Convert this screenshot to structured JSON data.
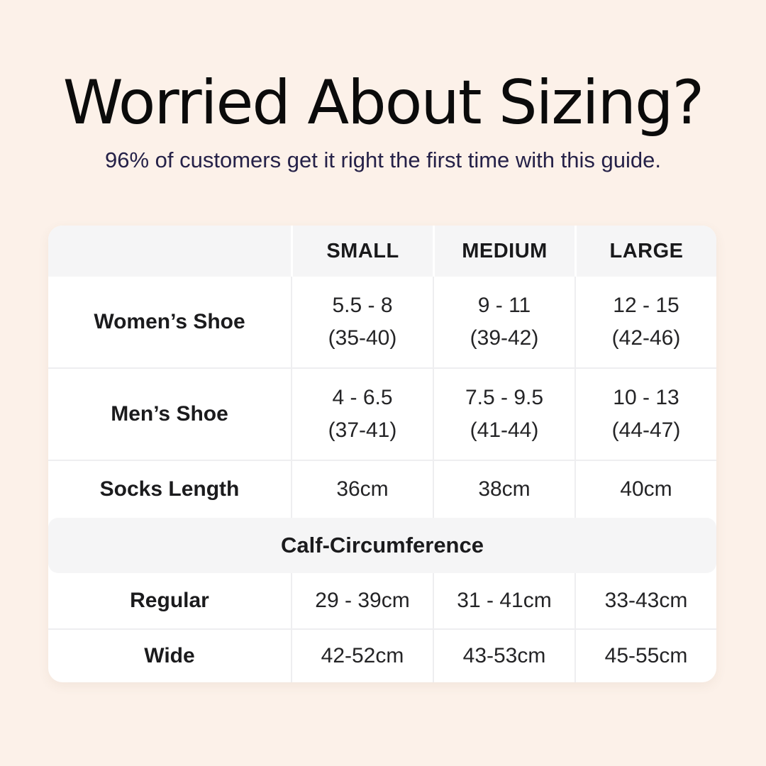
{
  "colors": {
    "page_background": "#fcf1e9",
    "table_background": "#ffffff",
    "header_band_gray": "#f5f5f6",
    "grid_line": "#eeeef0",
    "title_text": "#0b0b0b",
    "subtitle_text": "#252148",
    "table_text": "#242426"
  },
  "chart_data": {
    "type": "table",
    "title": "Worried About Sizing?",
    "subtitle": "96% of customers get it right the first time with this guide.",
    "column_headers": [
      "SMALL",
      "MEDIUM",
      "LARGE"
    ],
    "shoe_rows": [
      {
        "label": "Women’s Shoe",
        "cells": [
          {
            "line1": "5.5 - 8",
            "line2": "(35-40)"
          },
          {
            "line1": "9 - 11",
            "line2": "(39-42)"
          },
          {
            "line1": "12 - 15",
            "line2": "(42-46)"
          }
        ]
      },
      {
        "label": "Men’s Shoe",
        "cells": [
          {
            "line1": "4 - 6.5",
            "line2": "(37-41)"
          },
          {
            "line1": "7.5 - 9.5",
            "line2": "(41-44)"
          },
          {
            "line1": "10 - 13",
            "line2": "(44-47)"
          }
        ]
      }
    ],
    "socks_row": {
      "label": "Socks Length",
      "cells": [
        "36cm",
        "38cm",
        "40cm"
      ]
    },
    "section_header": "Calf-Circumference",
    "calf_rows": [
      {
        "label": "Regular",
        "cells": [
          "29 - 39cm",
          "31 - 41cm",
          "33-43cm"
        ]
      },
      {
        "label": "Wide",
        "cells": [
          "42-52cm",
          "43-53cm",
          "45-55cm"
        ]
      }
    ]
  }
}
